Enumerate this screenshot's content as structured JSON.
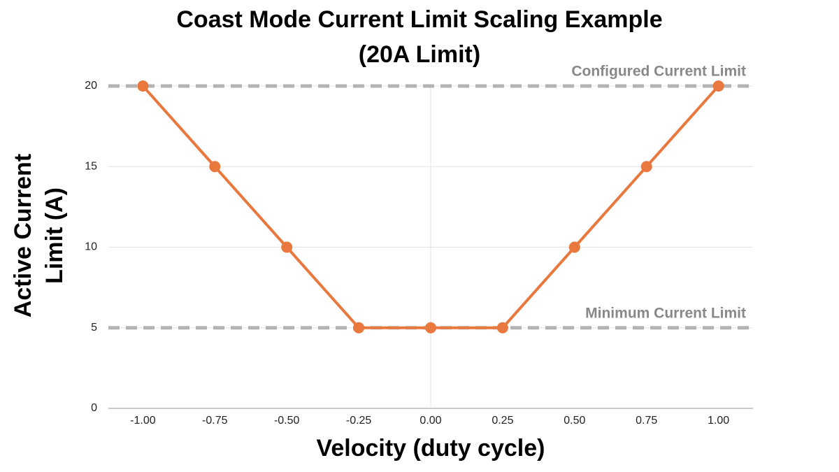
{
  "chart_data": {
    "type": "line",
    "title": [
      "Coast Mode Current Limit Scaling Example",
      "(20A Limit)"
    ],
    "x_label": "Velocity (duty cycle)",
    "y_label": [
      "Active Current",
      "Limit (A)"
    ],
    "x": [
      -1,
      -0.75,
      -0.5,
      -0.25,
      0,
      0.25,
      0.5,
      0.75,
      1
    ],
    "series": [
      {
        "name": "Active Current Limit",
        "color": "#e8783d",
        "values": [
          20,
          15,
          10,
          5,
          5,
          5,
          10,
          15,
          20
        ]
      }
    ],
    "xlim": [
      -1.12,
      1.12
    ],
    "xticks": [
      {
        "value": -1,
        "label": "-1.00"
      },
      {
        "value": -0.75,
        "label": "-0.75"
      },
      {
        "value": -0.5,
        "label": "-0.50"
      },
      {
        "value": -0.25,
        "label": "-0.25"
      },
      {
        "value": 0,
        "label": "0.00"
      },
      {
        "value": 0.25,
        "label": "0.25"
      },
      {
        "value": 0.5,
        "label": "0.50"
      },
      {
        "value": 0.75,
        "label": "0.75"
      },
      {
        "value": 1,
        "label": "1.00"
      }
    ],
    "ylim": [
      0,
      20
    ],
    "yticks": [
      0,
      5,
      10,
      15,
      20
    ],
    "grid": true,
    "reference_lines": [
      {
        "value": 20,
        "label": "Configured Current Limit",
        "color": "#b3b3b3"
      },
      {
        "value": 5,
        "label": "Minimum Current Limit",
        "color": "#b3b3b3"
      }
    ]
  }
}
